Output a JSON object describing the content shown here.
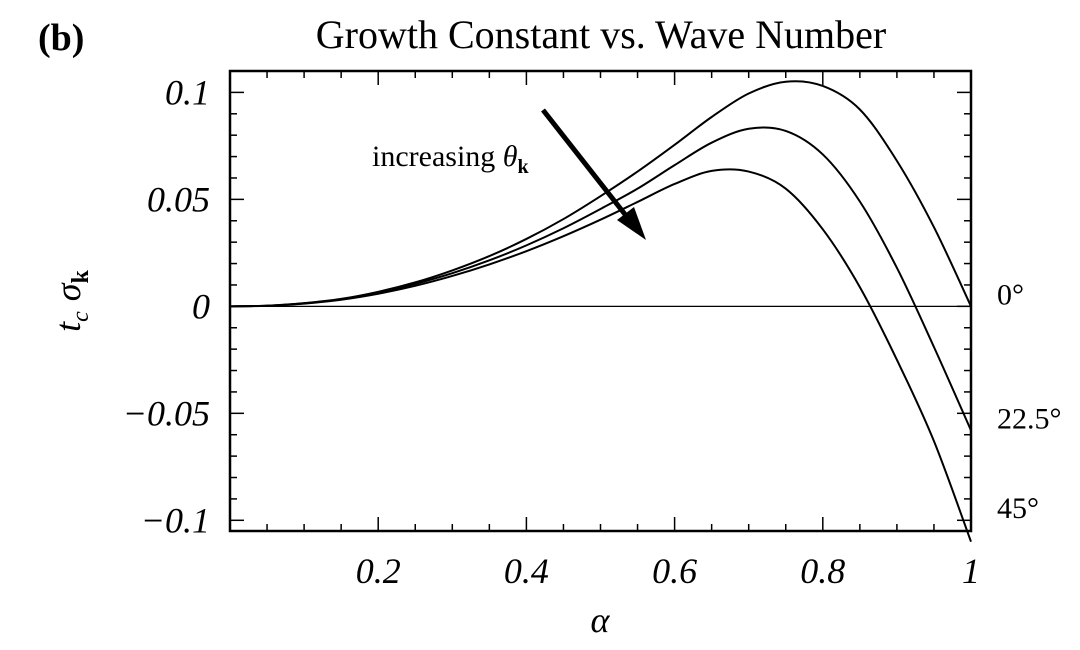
{
  "panel_label": "(b)",
  "chart_data": {
    "type": "line",
    "title": "Growth Constant vs. Wave Number",
    "xlabel": "α",
    "ylabel": {
      "main": "t",
      "sub1": "c",
      "sigma": "σ",
      "sub2": "k"
    },
    "xlim": [
      0,
      1
    ],
    "ylim": [
      -0.105,
      0.11
    ],
    "x_ticks": [
      {
        "value": 0.2,
        "label": "0.2"
      },
      {
        "value": 0.4,
        "label": "0.4"
      },
      {
        "value": 0.6,
        "label": "0.6"
      },
      {
        "value": 0.8,
        "label": "0.8"
      },
      {
        "value": 1,
        "label": "1"
      }
    ],
    "y_ticks": [
      {
        "value": 0.1,
        "label": "0.1"
      },
      {
        "value": 0.05,
        "label": "0.05"
      },
      {
        "value": 0,
        "label": "0"
      },
      {
        "value": -0.05,
        "label": "−0.05"
      },
      {
        "value": -0.1,
        "label": "−0.1"
      }
    ],
    "zero_line": true,
    "annotation": {
      "text": "increasing ",
      "symbol": "θ",
      "subscript": "k"
    },
    "series": [
      {
        "name": "0°",
        "x": [
          0,
          0.05,
          0.1,
          0.15,
          0.2,
          0.25,
          0.3,
          0.35,
          0.4,
          0.45,
          0.5,
          0.55,
          0.6,
          0.65,
          0.7,
          0.75,
          0.8,
          0.85,
          0.9,
          0.95,
          1.0
        ],
        "y": [
          0,
          0.0003,
          0.0015,
          0.0035,
          0.0068,
          0.0112,
          0.0168,
          0.0235,
          0.0315,
          0.0408,
          0.0515,
          0.063,
          0.0755,
          0.0885,
          0.0995,
          0.105,
          0.103,
          0.092,
          0.068,
          0.037,
          0.0
        ]
      },
      {
        "name": "22.5°",
        "x": [
          0,
          0.05,
          0.1,
          0.15,
          0.2,
          0.25,
          0.3,
          0.35,
          0.4,
          0.45,
          0.5,
          0.55,
          0.6,
          0.65,
          0.7,
          0.75,
          0.8,
          0.85,
          0.9,
          0.95,
          1.0
        ],
        "y": [
          0,
          0.0003,
          0.0014,
          0.0033,
          0.0064,
          0.0105,
          0.0155,
          0.0215,
          0.0285,
          0.0365,
          0.0455,
          0.055,
          0.066,
          0.0765,
          0.083,
          0.082,
          0.071,
          0.049,
          0.018,
          -0.019,
          -0.058
        ]
      },
      {
        "name": "45°",
        "x": [
          0,
          0.05,
          0.1,
          0.15,
          0.2,
          0.25,
          0.3,
          0.35,
          0.4,
          0.45,
          0.5,
          0.55,
          0.6,
          0.65,
          0.7,
          0.75,
          0.8,
          0.85,
          0.9,
          0.95,
          1.0
        ],
        "y": [
          0,
          0.0003,
          0.0013,
          0.0031,
          0.0059,
          0.0096,
          0.0142,
          0.0196,
          0.0258,
          0.0328,
          0.0405,
          0.0488,
          0.0572,
          0.0633,
          0.063,
          0.055,
          0.036,
          0.009,
          -0.025,
          -0.063,
          -0.11
        ]
      }
    ],
    "colors": {
      "line": "#000000"
    }
  }
}
